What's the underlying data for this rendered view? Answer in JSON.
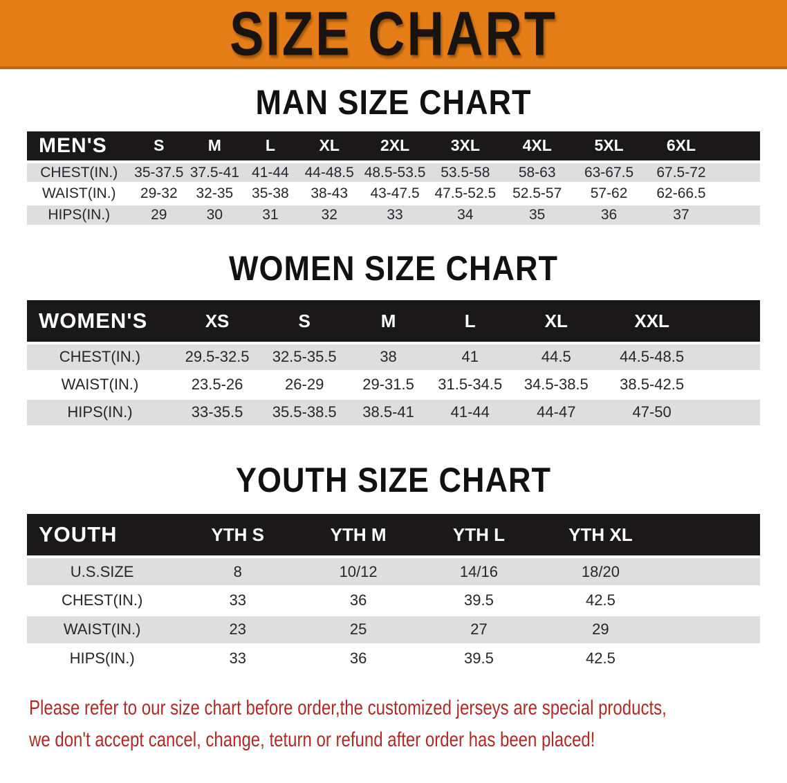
{
  "banner": {
    "title": "SIZE CHART"
  },
  "sections": {
    "man": {
      "heading": "MAN SIZE CHART"
    },
    "women": {
      "heading": "WOMEN SIZE CHART"
    },
    "youth": {
      "heading": "YOUTH SIZE CHART"
    }
  },
  "tables": {
    "men": {
      "title": "MEN'S",
      "sizes": [
        "S",
        "M",
        "L",
        "XL",
        "2XL",
        "3XL",
        "4XL",
        "5XL",
        "6XL"
      ],
      "rows": [
        {
          "label": "CHEST(IN.)",
          "shaded": true,
          "values": [
            "35-37.5",
            "37.5-41",
            "41-44",
            "44-48.5",
            "48.5-53.5",
            "53.5-58",
            "58-63",
            "63-67.5",
            "67.5-72"
          ]
        },
        {
          "label": "WAIST(IN.)",
          "shaded": false,
          "values": [
            "29-32",
            "32-35",
            "35-38",
            "38-43",
            "43-47.5",
            "47.5-52.5",
            "52.5-57",
            "57-62",
            "62-66.5"
          ]
        },
        {
          "label": "HIPS(IN.)",
          "shaded": true,
          "values": [
            "29",
            "30",
            "31",
            "32",
            "33",
            "34",
            "35",
            "36",
            "37"
          ]
        }
      ]
    },
    "women": {
      "title": "WOMEN'S",
      "sizes": [
        "XS",
        "S",
        "M",
        "L",
        "XL",
        "XXL"
      ],
      "rows": [
        {
          "label": "CHEST(IN.)",
          "shaded": true,
          "values": [
            "29.5-32.5",
            "32.5-35.5",
            "38",
            "41",
            "44.5",
            "44.5-48.5"
          ]
        },
        {
          "label": "WAIST(IN.)",
          "shaded": false,
          "values": [
            "23.5-26",
            "26-29",
            "29-31.5",
            "31.5-34.5",
            "34.5-38.5",
            "38.5-42.5"
          ]
        },
        {
          "label": "HIPS(IN.)",
          "shaded": true,
          "values": [
            "33-35.5",
            "35.5-38.5",
            "38.5-41",
            "41-44",
            "44-47",
            "47-50"
          ]
        }
      ]
    },
    "youth": {
      "title": "YOUTH",
      "sizes": [
        "YTH S",
        "YTH M",
        "YTH L",
        "YTH XL"
      ],
      "rows": [
        {
          "label": "U.S.SIZE",
          "shaded": true,
          "values": [
            "8",
            "10/12",
            "14/16",
            "18/20"
          ]
        },
        {
          "label": "CHEST(IN.)",
          "shaded": false,
          "values": [
            "33",
            "36",
            "39.5",
            "42.5"
          ]
        },
        {
          "label": "WAIST(IN.)",
          "shaded": true,
          "values": [
            "23",
            "25",
            "27",
            "29"
          ]
        },
        {
          "label": "HIPS(IN.)",
          "shaded": false,
          "values": [
            "33",
            "36",
            "39.5",
            "42.5"
          ]
        }
      ]
    }
  },
  "disclaimer": {
    "line1": "Please refer to our size chart before order,the customized jerseys are special products,",
    "line2": "we don't accept cancel, change, teturn or refund after order has been placed!"
  },
  "colors": {
    "banner_bg": "#e67e17",
    "banner_edge": "#c0660e",
    "title_text": "#1a1410",
    "header_band": "#1a1818",
    "row_shade": "#dedede",
    "body_text": "#26262b",
    "disclaimer_red": "#ad2b26"
  }
}
